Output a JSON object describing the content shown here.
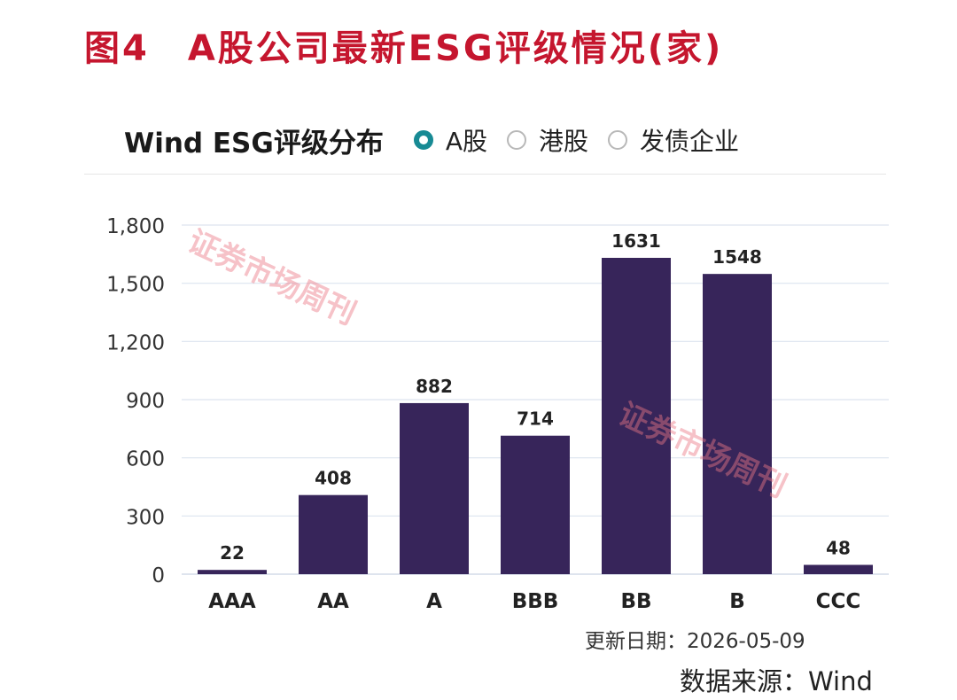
{
  "figure": {
    "title": "图4　A股公司最新ESG评级情况(家)"
  },
  "chart_header": {
    "title": "Wind ESG评级分布",
    "options": [
      {
        "label": "A股",
        "selected": true
      },
      {
        "label": "港股",
        "selected": false
      },
      {
        "label": "发债企业",
        "selected": false
      }
    ]
  },
  "chart_data": {
    "type": "bar",
    "categories": [
      "AAA",
      "AA",
      "A",
      "BBB",
      "BB",
      "B",
      "CCC"
    ],
    "values": [
      22,
      408,
      882,
      714,
      1631,
      1548,
      48
    ],
    "ylim": [
      0,
      1800
    ],
    "yticks": [
      0,
      300,
      600,
      900,
      1200,
      1500,
      1800
    ],
    "ytick_labels": [
      "0",
      "300",
      "600",
      "900",
      "1,200",
      "1,500",
      "1,800"
    ],
    "bar_color": "#37255a",
    "grid": true,
    "data_labels": true
  },
  "footer": {
    "update_date": "更新日期：2026-05-09",
    "source": "数据来源：Wind"
  },
  "watermark": "证券市场周刊"
}
